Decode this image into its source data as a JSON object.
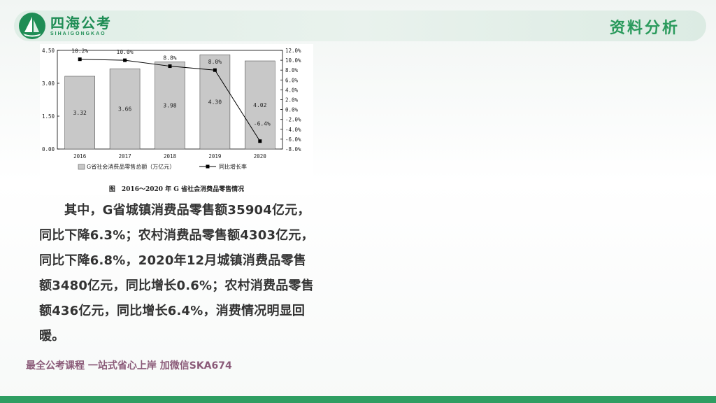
{
  "header": {
    "logo_cn": "四海公考",
    "logo_en": "SIHAIGONGKAO",
    "section_title": "资料分析"
  },
  "colors": {
    "brand_green": "#1f8d55",
    "bar_fill": "#c8c8c8",
    "line": "#000000",
    "footer_text": "#8a5a78"
  },
  "chart_data": {
    "type": "bar",
    "categories": [
      "2016",
      "2017",
      "2018",
      "2019",
      "2020"
    ],
    "series": [
      {
        "name": "G省社会消费品零售总额（万亿元）",
        "type": "bar",
        "axis": "left",
        "values": [
          3.32,
          3.66,
          3.98,
          4.3,
          4.02
        ],
        "labels": [
          "3.32",
          "3.66",
          "3.98",
          "4.30",
          "4.02"
        ]
      },
      {
        "name": "同比增长率",
        "type": "line",
        "axis": "right",
        "values": [
          10.2,
          10.0,
          8.8,
          8.0,
          -6.4
        ],
        "labels": [
          "10.2%",
          "10.0%",
          "8.8%",
          "8.0%",
          "-6.4%"
        ]
      }
    ],
    "y_left": {
      "ylim": [
        0,
        4.5
      ],
      "ticks": [
        "0.00",
        "1.50",
        "3.00",
        "4.50"
      ],
      "tick_values": [
        0,
        1.5,
        3,
        4.5
      ]
    },
    "y_right": {
      "ylim": [
        -8,
        12
      ],
      "ticks": [
        "12.0%",
        "10.0%",
        "8.0%",
        "6.0%",
        "4.0%",
        "2.0%",
        "0.0%",
        "-2.0%",
        "-4.0%",
        "-6.0%",
        "-8.0%"
      ],
      "tick_values": [
        12,
        10,
        8,
        6,
        4,
        2,
        0,
        -2,
        -4,
        -6,
        -8
      ]
    },
    "caption": "图　2016～2020 年 G 省社会消费品零售情况",
    "grid": false,
    "legend_position": "bottom"
  },
  "paragraph": "其中，G省城镇消费品零售额35904亿元，同比下降6.3%；农村消费品零售额4303亿元，同比下降6.8%，2020年12月城镇消费品零售额3480亿元，同比增长0.6%；农村消费品零售额436亿元，同比增长6.4%，消费情况明显回暖。",
  "footer": {
    "ad_text": "最全公考课程 一站式省心上岸 加微信SKA674"
  }
}
